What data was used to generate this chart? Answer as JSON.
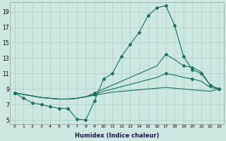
{
  "xlabel": "Humidex (Indice chaleur)",
  "xlim": [
    -0.5,
    23.5
  ],
  "ylim": [
    4.5,
    20.2
  ],
  "xticks": [
    0,
    1,
    2,
    3,
    4,
    5,
    6,
    7,
    8,
    9,
    10,
    11,
    12,
    13,
    14,
    15,
    16,
    17,
    18,
    19,
    20,
    21,
    22,
    23
  ],
  "yticks": [
    5,
    7,
    9,
    11,
    13,
    15,
    17,
    19
  ],
  "bg_color": "#cce8e0",
  "grid_color": "#aacfc8",
  "line_color": "#1a6e62",
  "line1_x": [
    0,
    1,
    2,
    3,
    4,
    5,
    6,
    7,
    8,
    9,
    10,
    11,
    12,
    13,
    14,
    15,
    16,
    17,
    18,
    19,
    20,
    21,
    22,
    23
  ],
  "line1_y": [
    8.5,
    7.8,
    7.2,
    7.0,
    6.7,
    6.5,
    6.5,
    5.1,
    5.0,
    7.5,
    10.3,
    11.0,
    13.2,
    14.8,
    16.3,
    18.5,
    19.5,
    19.8,
    17.2,
    13.2,
    11.5,
    11.0,
    9.5,
    9.0
  ],
  "line2_x": [
    0,
    1,
    2,
    3,
    4,
    5,
    6,
    7,
    8,
    9,
    10,
    11,
    12,
    13,
    14,
    15,
    16,
    17,
    18,
    19,
    20,
    21,
    22,
    23
  ],
  "line2_y": [
    8.5,
    8.3,
    8.1,
    7.9,
    7.8,
    7.7,
    7.7,
    7.8,
    8.0,
    8.5,
    9.0,
    9.5,
    10.0,
    10.5,
    11.0,
    11.5,
    12.0,
    13.5,
    12.8,
    12.0,
    11.8,
    11.2,
    9.5,
    9.0
  ],
  "line3_x": [
    0,
    1,
    2,
    3,
    4,
    5,
    6,
    7,
    8,
    9,
    10,
    11,
    12,
    13,
    14,
    15,
    16,
    17,
    18,
    19,
    20,
    21,
    22,
    23
  ],
  "line3_y": [
    8.5,
    8.3,
    8.1,
    7.9,
    7.8,
    7.7,
    7.7,
    7.8,
    8.0,
    8.3,
    8.7,
    9.0,
    9.3,
    9.6,
    9.9,
    10.2,
    10.5,
    11.0,
    10.8,
    10.5,
    10.3,
    10.0,
    9.2,
    9.0
  ],
  "line4_x": [
    0,
    1,
    2,
    3,
    4,
    5,
    6,
    7,
    8,
    9,
    10,
    11,
    12,
    13,
    14,
    15,
    16,
    17,
    18,
    19,
    20,
    21,
    22,
    23
  ],
  "line4_y": [
    8.5,
    8.3,
    8.1,
    7.9,
    7.8,
    7.7,
    7.7,
    7.8,
    8.0,
    8.2,
    8.4,
    8.6,
    8.7,
    8.8,
    8.9,
    9.0,
    9.1,
    9.2,
    9.1,
    9.0,
    8.9,
    8.8,
    8.7,
    9.0
  ]
}
